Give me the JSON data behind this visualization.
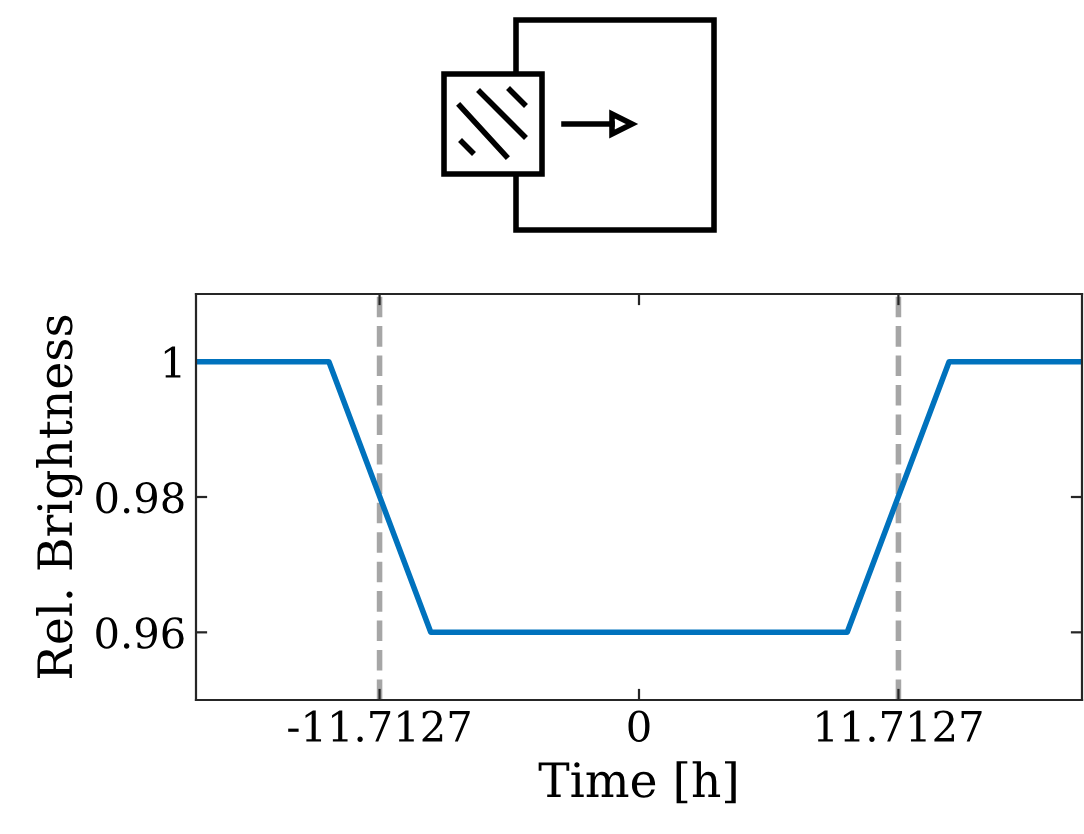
{
  "chart_data": {
    "type": "line",
    "xlabel": "Time [h]",
    "ylabel": "Rel. Brightness",
    "x": [
      -20,
      -14,
      -9.4,
      9.4,
      14,
      20
    ],
    "series": [
      {
        "color": "#0072bd",
        "values": [
          1,
          1,
          0.96,
          0.96,
          1,
          1
        ]
      }
    ],
    "xlim": [
      -20,
      20
    ],
    "ylim": [
      0.95,
      1.01
    ],
    "xticks": [
      -11.7127,
      0,
      11.7127
    ],
    "yticks": [
      0.96,
      0.98,
      1
    ],
    "ref_lines": [
      {
        "axis": "x",
        "value": -11.7127,
        "color": "#a6a6a6",
        "line_style": "dashed"
      },
      {
        "axis": "x",
        "value": 11.7127,
        "color": "#a6a6a6",
        "line_style": "dashed"
      }
    ],
    "grid": false,
    "legend": false,
    "marker": "none",
    "line_style": "solid"
  }
}
